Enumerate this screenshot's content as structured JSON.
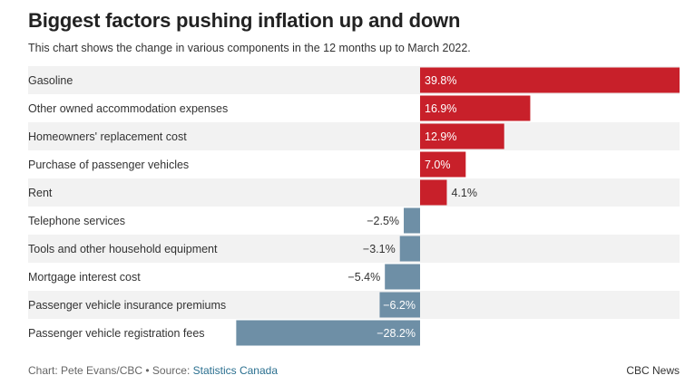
{
  "title": "Biggest factors pushing inflation up and down",
  "subtitle": "This chart shows the change in various components in the 12 months up to March 2022.",
  "chart_data": {
    "type": "bar",
    "orientation": "horizontal",
    "categories": [
      "Gasoline",
      "Other owned accommodation expenses",
      "Homeowners' replacement cost",
      "Purchase of passenger vehicles",
      "Rent",
      "Telephone services",
      "Tools and other household equipment",
      "Mortgage interest cost",
      "Passenger vehicle insurance premiums",
      "Passenger vehicle registration fees"
    ],
    "values": [
      39.8,
      16.9,
      12.9,
      7.0,
      4.1,
      -2.5,
      -3.1,
      -5.4,
      -6.2,
      -28.2
    ],
    "value_labels": [
      "39.8%",
      "16.9%",
      "12.9%",
      "7.0%",
      "4.1%",
      "−2.5%",
      "−3.1%",
      "−5.4%",
      "−6.2%",
      "−28.2%"
    ],
    "colors": {
      "positive": "#c8202a",
      "negative": "#6e8fa6",
      "row_band": "#f2f2f2"
    },
    "unit": "%"
  },
  "footer": {
    "credit_prefix": "Chart: Pete Evans/CBC • Source: ",
    "source_link": "Statistics Canada",
    "brand": "CBC News"
  }
}
